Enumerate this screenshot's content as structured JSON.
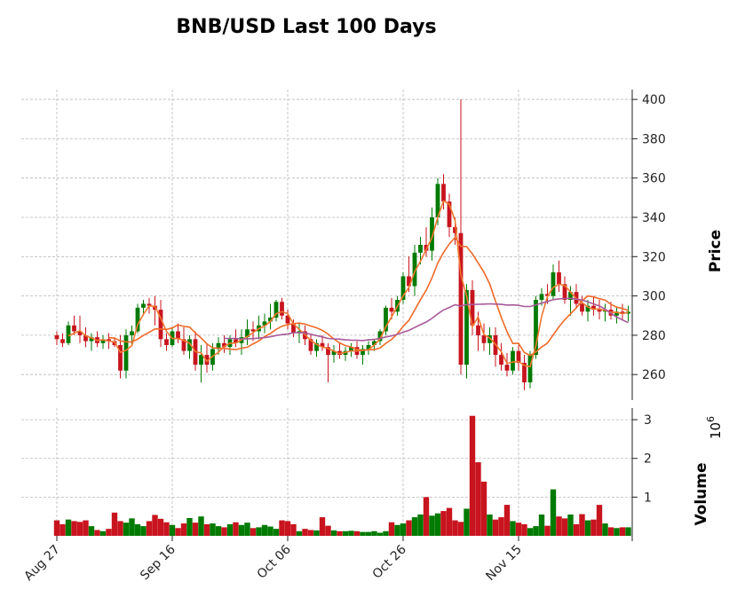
{
  "chart_data": {
    "type": "candlestick",
    "title": "BNB/USD Last 100 Days",
    "price_axis": {
      "label": "Price",
      "ticks": [
        260,
        280,
        300,
        320,
        340,
        360,
        380,
        400
      ],
      "range": [
        247,
        405
      ],
      "position": "right"
    },
    "volume_axis": {
      "label": "Volume",
      "exponent_label": "10^6",
      "ticks": [
        1,
        2,
        3
      ],
      "tick_labels": [
        "1",
        "2",
        "3"
      ],
      "range": [
        0,
        3.3
      ],
      "position": "right"
    },
    "x_axis": {
      "tick_labels": [
        "Aug 27",
        "Sep 16",
        "Oct 06",
        "Oct 26",
        "Nov 15"
      ],
      "tick_indices": [
        0,
        20,
        40,
        60,
        80
      ],
      "count": 100
    },
    "grid": true,
    "colors": {
      "up": "#007a00",
      "down": "#c8141e",
      "ma_fast": "#f07830",
      "ma_mid": "#f06a28",
      "ma_slow": "#a85a9a"
    },
    "moving_averages": [
      {
        "period": 3,
        "color": "#f07830"
      },
      {
        "period": 10,
        "color": "#f06a28"
      },
      {
        "period": 30,
        "color": "#a85a9a"
      }
    ],
    "candles": [
      [
        280,
        282,
        275,
        278
      ],
      [
        278,
        281,
        274,
        276
      ],
      [
        276,
        287,
        275,
        285
      ],
      [
        285,
        290,
        280,
        282
      ],
      [
        282,
        290,
        276,
        280
      ],
      [
        280,
        284,
        274,
        277
      ],
      [
        277,
        281,
        272,
        279
      ],
      [
        279,
        282,
        274,
        276
      ],
      [
        276,
        280,
        273,
        278
      ],
      [
        278,
        281,
        273,
        277
      ],
      [
        277,
        279,
        274,
        275
      ],
      [
        275,
        280,
        258,
        262
      ],
      [
        262,
        283,
        258,
        280
      ],
      [
        280,
        285,
        275,
        282
      ],
      [
        282,
        296,
        281,
        294
      ],
      [
        294,
        298,
        290,
        296
      ],
      [
        296,
        299,
        291,
        295
      ],
      [
        295,
        300,
        285,
        293
      ],
      [
        293,
        298,
        274,
        278
      ],
      [
        278,
        281,
        272,
        275
      ],
      [
        275,
        284,
        274,
        282
      ],
      [
        282,
        286,
        276,
        278
      ],
      [
        278,
        284,
        270,
        272
      ],
      [
        272,
        280,
        268,
        278
      ],
      [
        278,
        282,
        262,
        265
      ],
      [
        265,
        275,
        256,
        270
      ],
      [
        270,
        276,
        261,
        265
      ],
      [
        265,
        276,
        262,
        273
      ],
      [
        273,
        279,
        270,
        276
      ],
      [
        276,
        280,
        271,
        274
      ],
      [
        274,
        280,
        270,
        278
      ],
      [
        278,
        283,
        274,
        276
      ],
      [
        276,
        283,
        270,
        279
      ],
      [
        279,
        288,
        275,
        283
      ],
      [
        283,
        287,
        277,
        282
      ],
      [
        282,
        290,
        278,
        285
      ],
      [
        285,
        291,
        281,
        287
      ],
      [
        287,
        296,
        283,
        289
      ],
      [
        289,
        298,
        287,
        297
      ],
      [
        297,
        299,
        288,
        290
      ],
      [
        290,
        293,
        283,
        286
      ],
      [
        286,
        288,
        279,
        281
      ],
      [
        281,
        286,
        276,
        282
      ],
      [
        282,
        285,
        275,
        278
      ],
      [
        278,
        280,
        270,
        272
      ],
      [
        272,
        278,
        269,
        276
      ],
      [
        276,
        280,
        272,
        274
      ],
      [
        274,
        276,
        256,
        270
      ],
      [
        270,
        275,
        266,
        272
      ],
      [
        272,
        276,
        268,
        270
      ],
      [
        270,
        274,
        267,
        272
      ],
      [
        272,
        276,
        269,
        274
      ],
      [
        274,
        277,
        268,
        270
      ],
      [
        270,
        275,
        265,
        273
      ],
      [
        273,
        277,
        270,
        275
      ],
      [
        275,
        278,
        272,
        277
      ],
      [
        277,
        283,
        275,
        282
      ],
      [
        282,
        295,
        280,
        294
      ],
      [
        294,
        299,
        288,
        292
      ],
      [
        292,
        300,
        290,
        298
      ],
      [
        298,
        312,
        296,
        310
      ],
      [
        310,
        320,
        302,
        305
      ],
      [
        305,
        326,
        300,
        322
      ],
      [
        322,
        330,
        316,
        326
      ],
      [
        326,
        335,
        320,
        323
      ],
      [
        323,
        345,
        318,
        340
      ],
      [
        340,
        360,
        336,
        357
      ],
      [
        357,
        362,
        344,
        348
      ],
      [
        348,
        352,
        330,
        335
      ],
      [
        335,
        340,
        326,
        332
      ],
      [
        332,
        400,
        260,
        265
      ],
      [
        265,
        306,
        258,
        303
      ],
      [
        303,
        308,
        280,
        285
      ],
      [
        285,
        292,
        272,
        280
      ],
      [
        280,
        286,
        272,
        276
      ],
      [
        276,
        284,
        270,
        280
      ],
      [
        280,
        284,
        264,
        270
      ],
      [
        270,
        276,
        262,
        265
      ],
      [
        265,
        271,
        259,
        262
      ],
      [
        262,
        274,
        260,
        272
      ],
      [
        272,
        275,
        262,
        266
      ],
      [
        266,
        270,
        252,
        256
      ],
      [
        256,
        272,
        253,
        270
      ],
      [
        270,
        300,
        268,
        298
      ],
      [
        298,
        304,
        295,
        301
      ],
      [
        301,
        306,
        296,
        300
      ],
      [
        300,
        316,
        298,
        312
      ],
      [
        312,
        318,
        302,
        306
      ],
      [
        306,
        310,
        296,
        298
      ],
      [
        298,
        305,
        290,
        302
      ],
      [
        302,
        306,
        294,
        296
      ],
      [
        296,
        300,
        290,
        292
      ],
      [
        292,
        298,
        287,
        295
      ],
      [
        295,
        300,
        290,
        293
      ],
      [
        293,
        298,
        288,
        292
      ],
      [
        292,
        296,
        287,
        293
      ],
      [
        293,
        297,
        288,
        290
      ],
      [
        290,
        294,
        286,
        292
      ],
      [
        292,
        296,
        288,
        291
      ],
      [
        291,
        295,
        287,
        292
      ]
    ],
    "volume": [
      0.4,
      0.3,
      0.42,
      0.38,
      0.36,
      0.4,
      0.25,
      0.15,
      0.12,
      0.18,
      0.6,
      0.38,
      0.34,
      0.45,
      0.3,
      0.25,
      0.38,
      0.54,
      0.44,
      0.35,
      0.28,
      0.2,
      0.32,
      0.46,
      0.34,
      0.5,
      0.3,
      0.32,
      0.25,
      0.22,
      0.3,
      0.35,
      0.28,
      0.34,
      0.2,
      0.22,
      0.28,
      0.24,
      0.18,
      0.4,
      0.38,
      0.3,
      0.12,
      0.18,
      0.15,
      0.14,
      0.48,
      0.26,
      0.14,
      0.12,
      0.12,
      0.13,
      0.12,
      0.1,
      0.1,
      0.12,
      0.08,
      0.12,
      0.35,
      0.28,
      0.32,
      0.4,
      0.48,
      0.55,
      1.0,
      0.52,
      0.58,
      0.64,
      0.72,
      0.4,
      0.36,
      0.7,
      3.1,
      1.9,
      1.4,
      0.55,
      0.42,
      0.48,
      0.8,
      0.38,
      0.34,
      0.3,
      0.2,
      0.25,
      0.55,
      0.26,
      1.2,
      0.5,
      0.45,
      0.55,
      0.3,
      0.56,
      0.4,
      0.42,
      0.8,
      0.32,
      0.22,
      0.2,
      0.22,
      0.22
    ]
  }
}
